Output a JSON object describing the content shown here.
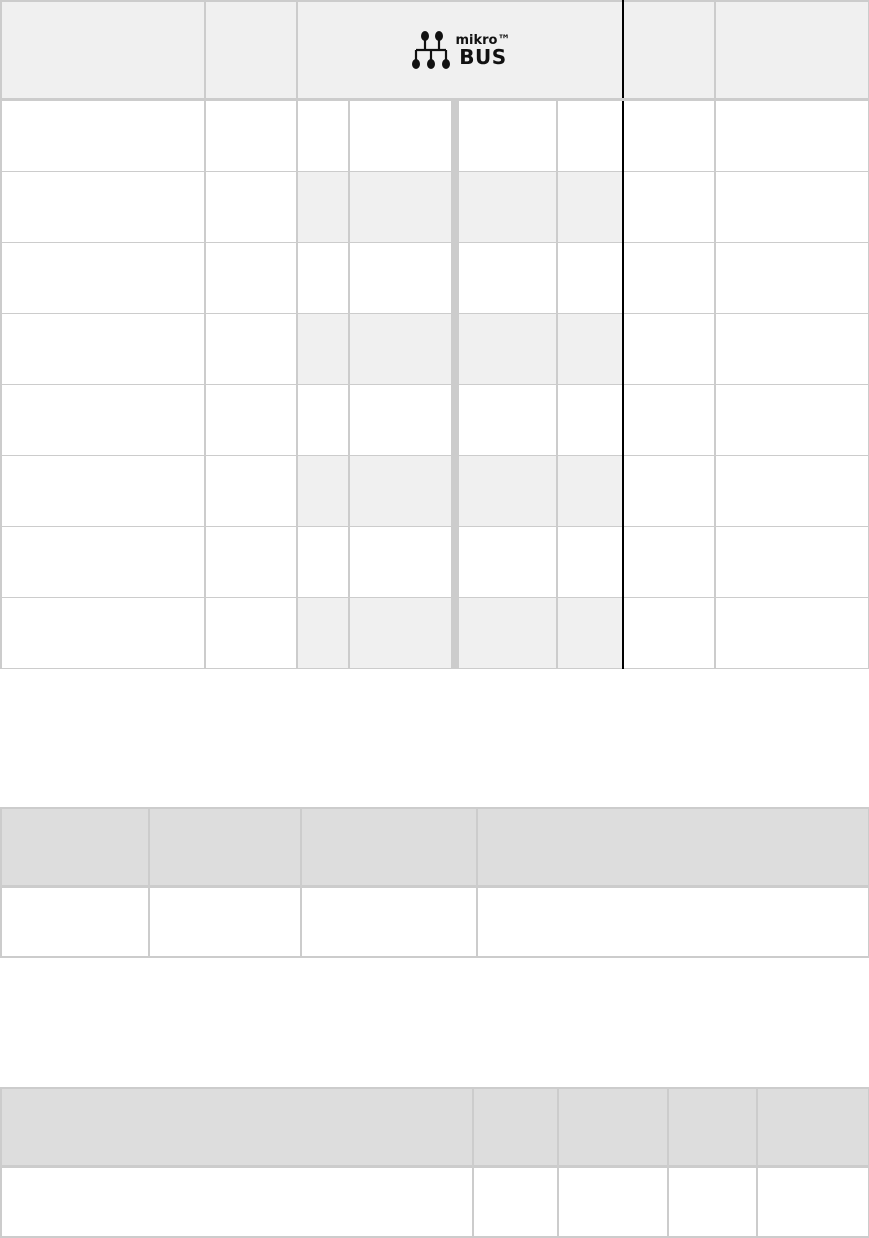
{
  "pinout_table": {
    "logo": {
      "line1": "mikro™",
      "line2": "BUS"
    },
    "row_count": 8
  },
  "second_table": {
    "columns": 4,
    "rows": 1
  },
  "third_table": {
    "columns": 5,
    "rows": 1
  },
  "colors": {
    "header_light": "#f0f0f0",
    "header_gray": "#dddddd",
    "border": "#cccccc",
    "bus_border": "#000000"
  }
}
